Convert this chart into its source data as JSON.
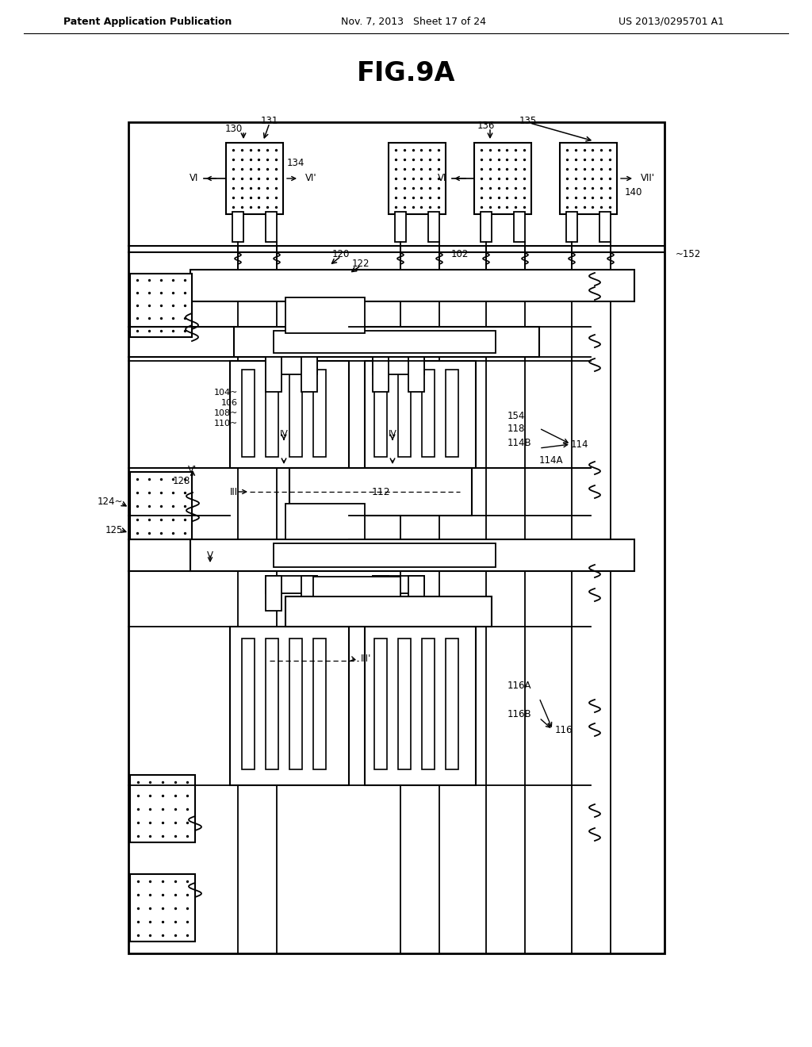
{
  "title": "FIG.9A",
  "header_left": "Patent Application Publication",
  "header_mid": "Nov. 7, 2013   Sheet 17 of 24",
  "header_right": "US 2013/0295701 A1",
  "bg_color": "#ffffff",
  "fig_width": 10.24,
  "fig_height": 13.2
}
